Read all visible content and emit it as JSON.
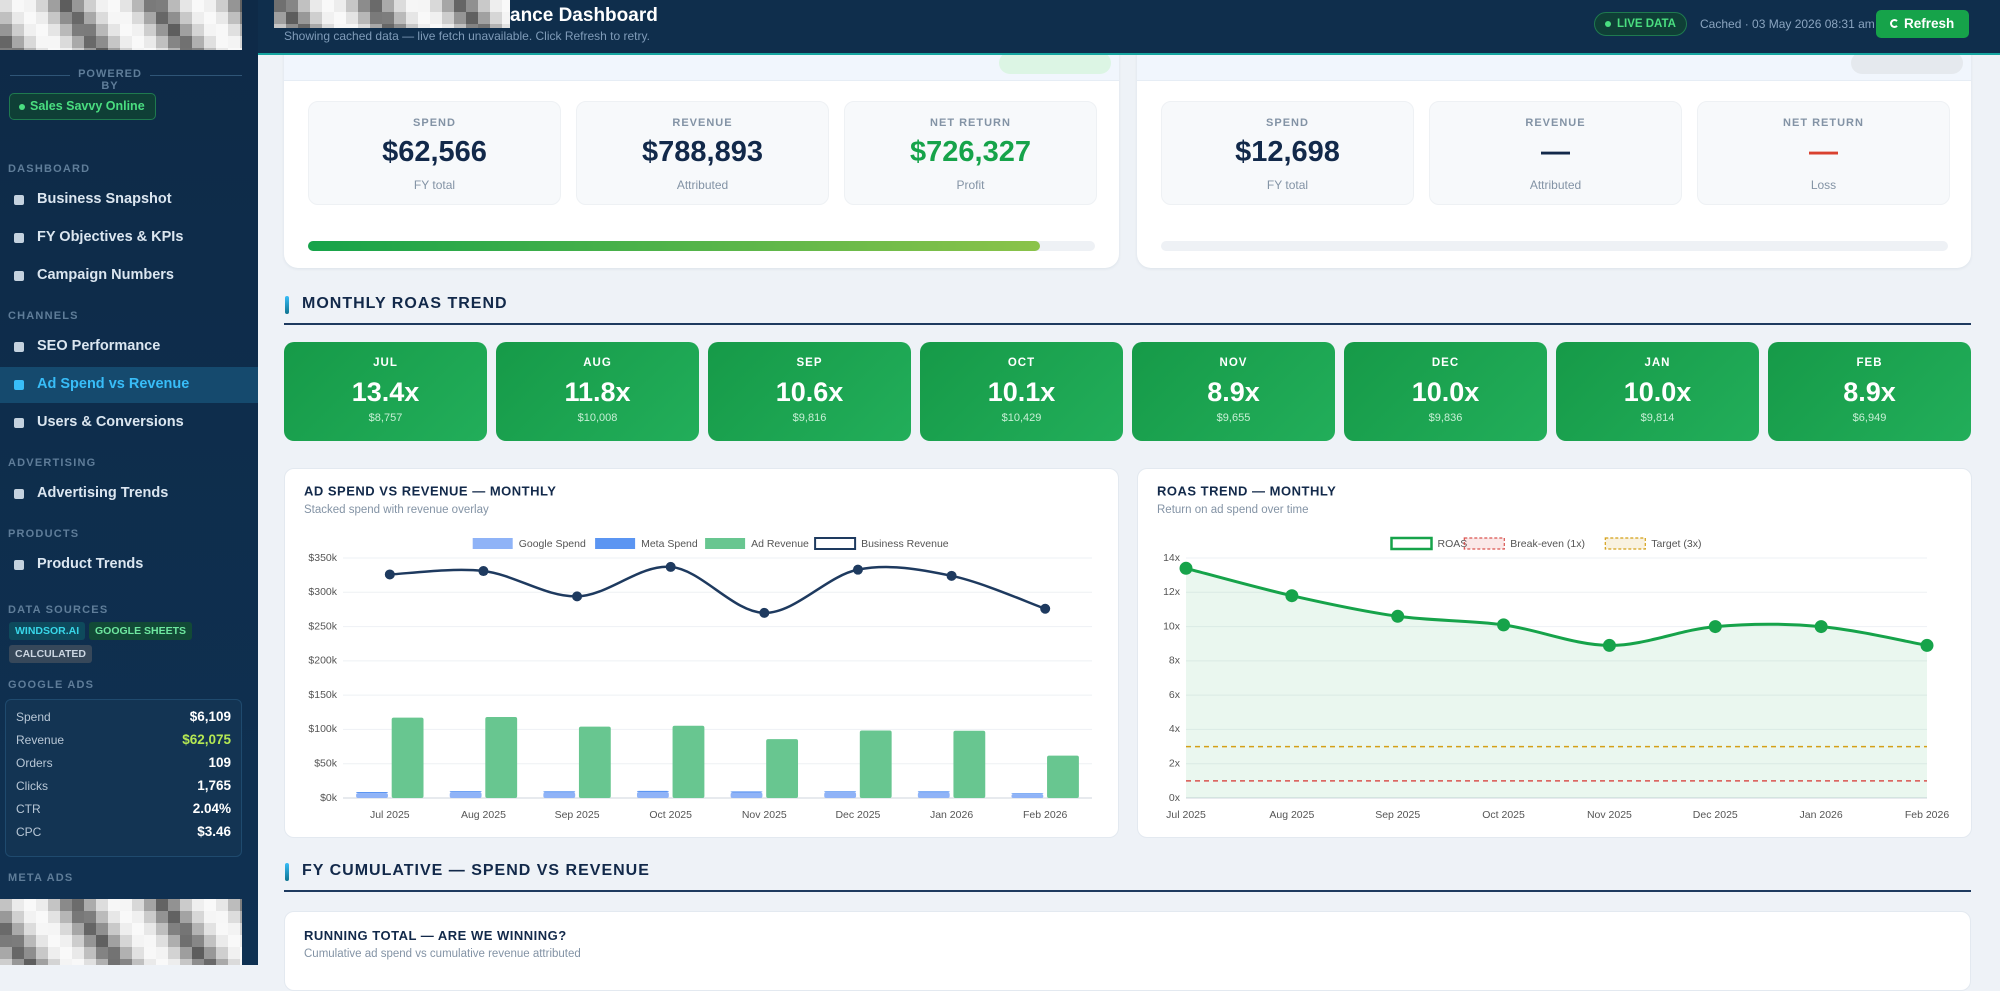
{
  "sidebar": {
    "powered_by": "POWERED BY",
    "badge": "Sales Savvy Online",
    "nav": [
      {
        "section": "DASHBOARD",
        "items": [
          {
            "label": "Business Snapshot"
          },
          {
            "label": "FY Objectives & KPIs"
          },
          {
            "label": "Campaign Numbers"
          }
        ]
      },
      {
        "section": "CHANNELS",
        "items": [
          {
            "label": "SEO Performance"
          },
          {
            "label": "Ad Spend vs Revenue",
            "active": true
          },
          {
            "label": "Users & Conversions"
          }
        ]
      },
      {
        "section": "ADVERTISING",
        "items": [
          {
            "label": "Advertising Trends"
          }
        ]
      },
      {
        "section": "PRODUCTS",
        "items": [
          {
            "label": "Product Trends"
          }
        ]
      }
    ],
    "data_sources": {
      "title": "DATA SOURCES",
      "tags": [
        "WINDSOR.AI",
        "GOOGLE SHEETS",
        "CALCULATED"
      ]
    },
    "google_ads": {
      "title": "GOOGLE ADS",
      "rows": [
        {
          "label": "Spend",
          "value": "$6,109"
        },
        {
          "label": "Revenue",
          "value": "$62,075",
          "highlight": true
        },
        {
          "label": "Orders",
          "value": "109"
        },
        {
          "label": "Clicks",
          "value": "1,765"
        },
        {
          "label": "CTR",
          "value": "2.04%"
        },
        {
          "label": "CPC",
          "value": "$3.46"
        }
      ]
    },
    "meta_ads": {
      "title": "META ADS"
    }
  },
  "header": {
    "title": "ance Dashboard",
    "subtitle": "Showing cached data — live fetch unavailable. Click Refresh to retry.",
    "status": "LIVE DATA",
    "cached": "Cached · 03 May 2026 08:31 am",
    "button": "Refresh"
  },
  "summary_cards": [
    {
      "stats": [
        {
          "label": "SPEND",
          "value": "$62,566",
          "note": "FY total"
        },
        {
          "label": "REVENUE",
          "value": "$788,893",
          "note": "Attributed"
        },
        {
          "label": "NET RETURN",
          "value": "$726,327",
          "note": "Profit",
          "tone": "positive"
        }
      ],
      "progress": 93
    },
    {
      "stats": [
        {
          "label": "SPEND",
          "value": "$12,698",
          "note": "FY total"
        },
        {
          "label": "REVENUE",
          "value": "—",
          "note": "Attributed"
        },
        {
          "label": "NET RETURN",
          "value": "—",
          "note": "Loss",
          "tone": "negative"
        }
      ],
      "progress": 0
    }
  ],
  "roas_section": {
    "title": "MONTHLY ROAS TREND",
    "months": [
      {
        "month": "JUL",
        "roas": "13.4x",
        "spend": "$8,757"
      },
      {
        "month": "AUG",
        "roas": "11.8x",
        "spend": "$10,008"
      },
      {
        "month": "SEP",
        "roas": "10.6x",
        "spend": "$9,816"
      },
      {
        "month": "OCT",
        "roas": "10.1x",
        "spend": "$10,429"
      },
      {
        "month": "NOV",
        "roas": "8.9x",
        "spend": "$9,655"
      },
      {
        "month": "DEC",
        "roas": "10.0x",
        "spend": "$9,836"
      },
      {
        "month": "JAN",
        "roas": "10.0x",
        "spend": "$9,814"
      },
      {
        "month": "FEB",
        "roas": "8.9x",
        "spend": "$6,949"
      }
    ]
  },
  "chart_data": [
    {
      "type": "bar",
      "title": "AD SPEND VS REVENUE — MONTHLY",
      "subtitle": "Stacked spend with revenue overlay",
      "categories": [
        "Jul 2025",
        "Aug 2025",
        "Sep 2025",
        "Oct 2025",
        "Nov 2025",
        "Dec 2025",
        "Jan 2026",
        "Feb 2026"
      ],
      "series": [
        {
          "name": "Google Spend",
          "color": "#8fb3f7",
          "stack": "spend",
          "values": [
            7200,
            8400,
            8200,
            8800,
            8100,
            8300,
            8200,
            5600
          ]
        },
        {
          "name": "Meta Spend",
          "color": "#5b95f2",
          "stack": "spend",
          "values": [
            1600,
            1600,
            1600,
            1600,
            1600,
            1500,
            1600,
            1300
          ]
        },
        {
          "name": "Ad Revenue",
          "color": "#68c690",
          "stack": "revenue",
          "values": [
            117300,
            118100,
            104000,
            105300,
            85900,
            98400,
            98100,
            61800
          ]
        },
        {
          "name": "Business Revenue",
          "color": "#1e3a5f",
          "type": "line",
          "values": [
            326000,
            331000,
            294000,
            337000,
            270000,
            333000,
            324000,
            276000
          ]
        }
      ],
      "ylim": [
        0,
        350000
      ],
      "yticks": [
        {
          "value": 0,
          "label": "$0k"
        },
        {
          "value": 50000,
          "label": "$50k"
        },
        {
          "value": 100000,
          "label": "$100k"
        },
        {
          "value": 150000,
          "label": "$150k"
        },
        {
          "value": 200000,
          "label": "$200k"
        },
        {
          "value": 250000,
          "label": "$250k"
        },
        {
          "value": 300000,
          "label": "$300k"
        },
        {
          "value": 350000,
          "label": "$350k"
        }
      ],
      "grid": true,
      "legend": "top"
    },
    {
      "type": "line",
      "title": "ROAS TREND — MONTHLY",
      "subtitle": "Return on ad spend over time",
      "categories": [
        "Jul 2025",
        "Aug 2025",
        "Sep 2025",
        "Oct 2025",
        "Nov 2025",
        "Dec 2025",
        "Jan 2026",
        "Feb 2026"
      ],
      "series": [
        {
          "name": "ROAS",
          "color": "#16a34a",
          "fill": true,
          "values": [
            13.4,
            11.8,
            10.6,
            10.1,
            8.9,
            10.0,
            10.0,
            8.9
          ]
        }
      ],
      "reference_lines": [
        {
          "name": "Break-even (1x)",
          "value": 1,
          "color": "#d9534f"
        },
        {
          "name": "Target (3x)",
          "value": 3,
          "color": "#d4a017"
        }
      ],
      "ylim": [
        0,
        14
      ],
      "yticks": [
        {
          "value": 0,
          "label": "0x"
        },
        {
          "value": 2,
          "label": "2x"
        },
        {
          "value": 4,
          "label": "4x"
        },
        {
          "value": 6,
          "label": "6x"
        },
        {
          "value": 8,
          "label": "8x"
        },
        {
          "value": 10,
          "label": "10x"
        },
        {
          "value": 12,
          "label": "12x"
        },
        {
          "value": 14,
          "label": "14x"
        }
      ],
      "grid": true,
      "legend": "top"
    }
  ],
  "cumulative_section": {
    "title": "FY CUMULATIVE — SPEND VS REVENUE",
    "card_title": "RUNNING TOTAL — ARE WE WINNING?",
    "card_subtitle": "Cumulative ad spend vs cumulative revenue attributed"
  }
}
